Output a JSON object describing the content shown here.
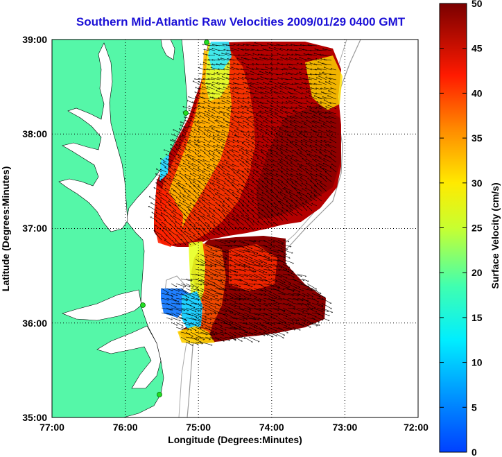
{
  "title": "Southern Mid-Atlantic Raw Velocities 2009/01/29 0400 GMT",
  "map": {
    "xlabel": "Longitude (Degrees:Minutes)",
    "ylabel": "Latitude (Degrees:Minutes)",
    "lon_ticks": [
      "77:00",
      "76:00",
      "75:00",
      "74:00",
      "73:00",
      "72:00"
    ],
    "lat_ticks": [
      "39:00",
      "38:00",
      "37:00",
      "36:00",
      "35:00"
    ],
    "lon_range": [
      -77,
      -72
    ],
    "lat_range": [
      35,
      39
    ],
    "grid": "dotted"
  },
  "colorbar": {
    "label": "Surface Velocity (cm/s)",
    "ticks": [
      "50",
      "45",
      "40",
      "35",
      "30",
      "25",
      "20",
      "15",
      "10",
      "5",
      "0"
    ],
    "range": [
      0,
      50
    ],
    "colormap": "jet"
  },
  "colors": {
    "land": "#55f7a8",
    "title": "#1a0fd6",
    "station": "#22dd22"
  }
}
